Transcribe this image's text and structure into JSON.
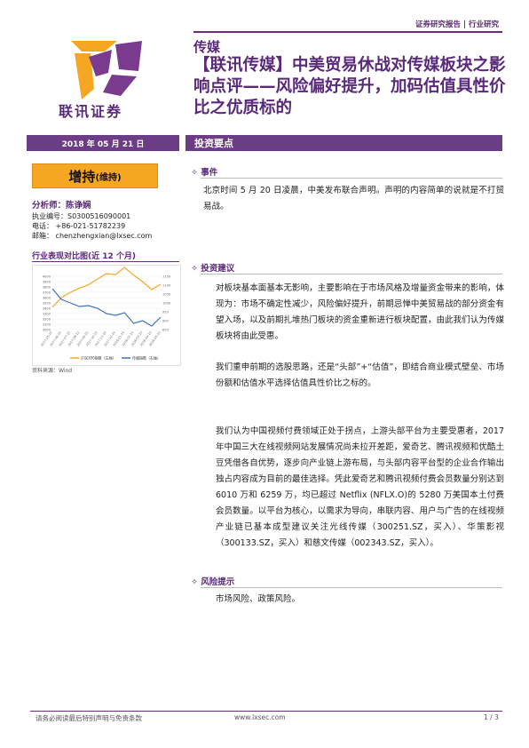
{
  "header": {
    "doc_type": "证券研究报告 | 行业研究",
    "company": "联讯证券",
    "category": "传媒",
    "title": "【联讯传媒】中美贸易休战对传媒板块之影响点评——风险偏好提升，加码估值具性价比之优质标的"
  },
  "sidebar": {
    "date": "2018 年 05 月 21 日",
    "rating_main": "增持",
    "rating_sub": "(维持)",
    "analyst_label": "分析师：",
    "analyst_name": "陈诤娴",
    "license": "执业编号：S0300516090001",
    "phone": "电话：  +86-021-51782239",
    "email": "邮箱：  chenzhengxian@lxsec.com",
    "perf_title": "行业表现对比图(近 12 个月)",
    "source": "资料来源：Wind"
  },
  "main": {
    "section_title": "投资要点",
    "events_head": "事件",
    "events_text": "北京时间 5 月 20 日凌晨，中美发布联合声明。声明的内容简单的说就是不打贸易战。",
    "advice_head": "投资建议",
    "advice_p1": "对板块基本面基本无影响，主要影响在于市场风格及增量资金带来的影响，体现为：市场不确定性减少，风险偏好提升，前期忌惮中美贸易战的部分资金有望入场，以及前期扎堆热门板块的资金重新进行板块配置，由此我们认为传媒板块将由此受惠。",
    "advice_p2": "我们重申前期的选股思路，还是“头部”+“估值”，即结合商业模式壁垒、市场份额和估值水平选择估值具性价比之标的。",
    "advice_p3": "我们认为中国视频付费领域正处于拐点，上游头部平台为主要受惠者，2017 年中国三大在线视频网站发展情况尚未拉开差距，爱奇艺、腾讯视频和优酷土豆凭借各自优势，逐步向产业链上游布局，与头部内容平台型的企业合作输出独占内容成为目前的最佳选择。凭此爱奇艺和腾讯视频付费会员数量分别达到 6010 万和 6259 万，均已超过 Netflix (NFLX.O)的 5280 万美国本土付费会员数量。以平台为核心，以需求为导向，串联内容、用户与广告的在线视频产业链已基本成型建议关注光线传媒（300251.SZ，买入）、华策影视（300133.SZ，买入）和慈文传媒（002343.SZ，买入）。",
    "risk_head": "风险提示",
    "risk_text": "市场风险、政策风险。"
  },
  "footer": {
    "disclaimer": "请务必阅读最后特别声明与免责条款",
    "website": "www.lxsec.com",
    "page": "1 / 3"
  },
  "chart_data": {
    "type": "line",
    "x": [
      "2017-05-22",
      "2017-06-22",
      "2017-07-22",
      "2017-08-22",
      "2017-09-22",
      "2017-10-22",
      "2017-11-22",
      "2017-12-22",
      "2018-01-22",
      "2018-02-22",
      "2018-03-22",
      "2018-04-22",
      "2018-05-22"
    ],
    "ylim_left": [
      3000,
      4000
    ],
    "ylim_right": [
      850,
      1150
    ],
    "left_ticks": [
      4000,
      3900,
      3800,
      3700,
      3600,
      3500,
      3400,
      3300,
      3200,
      3100,
      3000
    ],
    "right_ticks": [
      1150,
      1100,
      1050,
      1000,
      950,
      900,
      850
    ],
    "series": [
      {
        "name": "沪深300指数（左轴）",
        "axis": "left",
        "color": "#f5a623",
        "values": [
          3420,
          3600,
          3700,
          3780,
          3840,
          3950,
          4050,
          4030,
          4320,
          4020,
          3900,
          3750,
          3850
        ]
      },
      {
        "name": "传媒指数（右轴）",
        "axis": "right",
        "color": "#3f72b8",
        "values": [
          1080,
          1020,
          1000,
          980,
          985,
          970,
          940,
          930,
          945,
          885,
          900,
          870,
          920
        ]
      }
    ]
  }
}
